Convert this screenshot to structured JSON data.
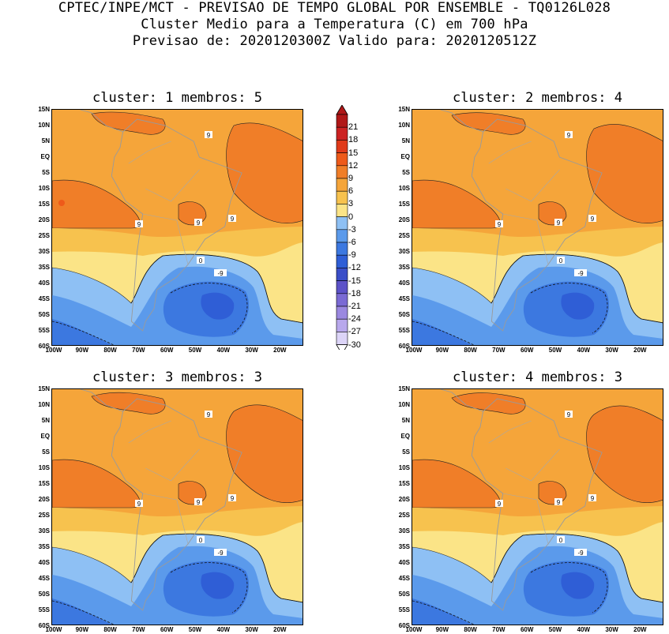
{
  "header": {
    "line1": "CPTEC/INPE/MCT - PREVISAO DE TEMPO GLOBAL POR ENSEMBLE - TQ0126L028",
    "line2": "Cluster Medio para a Temperatura (C) em 700 hPa",
    "line3": "Previsao de: 2020120300Z   Valido para: 2020120512Z"
  },
  "panels": [
    {
      "title": "cluster: 1  membros: 5",
      "zero_label": "0",
      "neg_label": "-9",
      "labels9": [
        "9",
        "9",
        "9",
        "9"
      ]
    },
    {
      "title": "cluster: 2  membros: 4",
      "zero_label": "0",
      "neg_label": "-9",
      "labels9": [
        "9",
        "9",
        "9",
        "9"
      ]
    },
    {
      "title": "cluster: 3  membros: 3",
      "zero_label": "0",
      "neg_label": "-9",
      "labels9": [
        "9",
        "9",
        "9",
        "9"
      ]
    },
    {
      "title": "cluster: 4  membros: 3",
      "zero_label": "0",
      "neg_label": "-9",
      "labels9": [
        "9",
        "9",
        "9",
        "9"
      ]
    }
  ],
  "axes": {
    "lat_ticks": [
      "15N",
      "10N",
      "5N",
      "EQ",
      "5S",
      "10S",
      "15S",
      "20S",
      "25S",
      "30S",
      "35S",
      "40S",
      "45S",
      "50S",
      "55S",
      "60S"
    ],
    "lon_ticks": [
      "100W",
      "90W",
      "80W",
      "70W",
      "60W",
      "50W",
      "40W",
      "30W",
      "20W"
    ]
  },
  "legend": {
    "labels": [
      "21",
      "18",
      "15",
      "12",
      "9",
      "6",
      "3",
      "0",
      "-3",
      "-6",
      "-9",
      "-12",
      "-15",
      "-18",
      "-21",
      "-24",
      "-27",
      "-30"
    ],
    "colors": [
      "#b01818",
      "#cc2222",
      "#e03a1a",
      "#ee5a1a",
      "#f07e28",
      "#f5a53a",
      "#f7c24e",
      "#fbe487",
      "#8ec0f4",
      "#5b9aeb",
      "#3c78e0",
      "#2f5ed6",
      "#3a4ec8",
      "#5c52c8",
      "#7a6ad4",
      "#9a88e0",
      "#b8a8ec",
      "#dcd4f7"
    ]
  }
}
